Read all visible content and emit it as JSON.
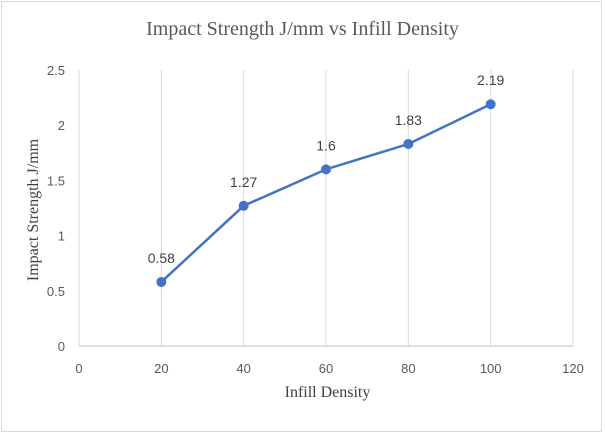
{
  "chart_data": {
    "type": "scatter",
    "title": "Impact Strength J/mm vs Infill Density",
    "xlabel": "Infill Density",
    "ylabel": "Impact Strength J/mm",
    "xlim": [
      0,
      120
    ],
    "ylim": [
      0,
      2.5
    ],
    "xticks": [
      "0",
      "20",
      "40",
      "60",
      "80",
      "100",
      "120"
    ],
    "yticks": [
      "0",
      "0.5",
      "1",
      "1.5",
      "2",
      "2.5"
    ],
    "grid": "vertical",
    "series": [
      {
        "x": [
          20,
          40,
          60,
          80,
          100
        ],
        "y": [
          0.58,
          1.27,
          1.6,
          1.83,
          2.19
        ],
        "labels": [
          "0.58",
          "1.27",
          "1.6",
          "1.83",
          "2.19"
        ],
        "color": "#4472c4",
        "markers": true,
        "line": true
      }
    ]
  }
}
